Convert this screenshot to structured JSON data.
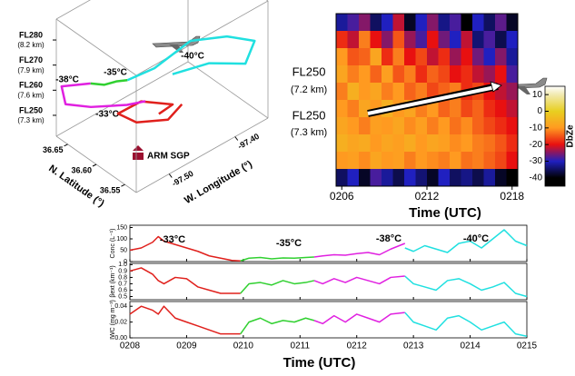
{
  "chart_data": [
    {
      "type": "trajectory3d",
      "xlabel": "W. Longitude (°)",
      "ylabel": "N. Latitude (°)",
      "xlim": [
        -97.55,
        -97.35
      ],
      "ylim": [
        36.53,
        36.67
      ],
      "zlim": [
        7.05,
        8.45
      ],
      "xticks": [
        {
          "value": -97.5,
          "label": "-97.50"
        },
        {
          "value": -97.4,
          "label": "-97.40"
        }
      ],
      "yticks": [
        36.65,
        {
          "value": 36.6,
          "label": "36.60"
        },
        36.55
      ],
      "zticks": [
        {
          "value": 8.2,
          "label": "FL280",
          "sublabel": "(8.2 km)"
        },
        {
          "value": 7.9,
          "label": "FL270",
          "sublabel": "(7.9 km)"
        },
        {
          "value": 7.6,
          "label": "FL260",
          "sublabel": "(7.6 km)"
        },
        {
          "value": 7.3,
          "label": "FL250",
          "sublabel": "(7.3 km)"
        }
      ],
      "annotations": [
        "ARM SGP"
      ],
      "series": [
        {
          "name": "-33°C",
          "color": "#e0201c",
          "x": [
            -97.42,
            -97.441,
            -97.489,
            -97.517,
            -97.482,
            -97.434,
            -97.455
          ],
          "y": [
            36.6,
            36.6,
            36.6,
            36.6,
            36.6,
            36.6,
            36.6
          ],
          "z": [
            7.19,
            7.1,
            7.28,
            7.51,
            7.5,
            7.25,
            7.23
          ]
        },
        {
          "name": "-38°C",
          "color": "#e020e0",
          "x": [
            -97.451,
            -97.479,
            -97.534,
            -97.536,
            -97.542,
            -97.498
          ],
          "y": [
            36.628,
            36.628,
            36.628,
            36.67,
            36.67,
            36.67
          ],
          "z": [
            7.23,
            7.31,
            7.53,
            7.37,
            7.61,
            7.45
          ]
        },
        {
          "name": "-35°C",
          "color": "#30d030",
          "x": [
            -97.498,
            -97.477,
            -97.459,
            -97.442
          ],
          "y": [
            36.67,
            36.67,
            36.67,
            36.67
          ],
          "z": [
            7.45,
            7.34,
            7.3,
            7.24
          ]
        },
        {
          "name": "-40°C",
          "color": "#20e0e0",
          "x": [
            -97.442,
            -97.401,
            -97.407,
            -97.388,
            -97.346,
            -97.36,
            -97.415,
            -97.41
          ],
          "y": [
            36.67,
            36.67,
            36.6,
            36.558,
            36.558,
            36.558,
            36.558,
            36.628
          ],
          "z": [
            7.24,
            7.2,
            7.89,
            8.06,
            7.82,
            7.61,
            7.86,
            7.37
          ]
        }
      ]
    },
    {
      "type": "heatmap",
      "xlabel": "Time (UTC)",
      "xlim": [
        5.6,
        18.4
      ],
      "xticks": [
        {
          "value": 6,
          "label": "0206"
        },
        {
          "value": 12,
          "label": "0212"
        },
        {
          "value": 18,
          "label": "0218"
        }
      ],
      "annotations": [
        "FL250",
        "(7.2 km)",
        "FL250",
        "(7.3 km)"
      ],
      "clabel": "DbZe",
      "clim": [
        -45,
        15
      ],
      "cticks": [
        10,
        0,
        -10,
        -20,
        -30,
        -40
      ],
      "colorscale": [
        {
          "value": 15,
          "color": "#ffffff"
        },
        {
          "value": 10,
          "color": "#f2eab0"
        },
        {
          "value": 0,
          "color": "#e8cf20"
        },
        {
          "value": -10,
          "color": "#ff9a20"
        },
        {
          "value": -20,
          "color": "#e81010"
        },
        {
          "value": -30,
          "color": "#2020c0"
        },
        {
          "value": -40,
          "color": "#000000"
        },
        {
          "value": -45,
          "color": "#000000"
        }
      ],
      "x": [
        6.0,
        6.8,
        7.6,
        8.4,
        9.2,
        10.0,
        10.8,
        11.6,
        12.4,
        13.2,
        14.0,
        14.8,
        15.6,
        16.4,
        17.2,
        18.0
      ],
      "z": [
        [
          -32,
          -28,
          -25,
          -35,
          -30,
          -22,
          -38,
          -30,
          -25,
          -33,
          -28,
          -40,
          -30,
          -35,
          -27,
          -38
        ],
        [
          -18,
          -22,
          -12,
          -20,
          -25,
          -15,
          -24,
          -28,
          -20,
          -26,
          -30,
          -22,
          -34,
          -28,
          -36,
          -30
        ],
        [
          -10,
          -15,
          -14,
          -8,
          -18,
          -12,
          -20,
          -16,
          -22,
          -18,
          -24,
          -20,
          -26,
          -30,
          -25,
          -32
        ],
        [
          -8,
          -12,
          -10,
          -14,
          -9,
          -15,
          -12,
          -18,
          -14,
          -16,
          -20,
          -18,
          -22,
          -24,
          -20,
          -28
        ],
        [
          -12,
          -6,
          -10,
          -8,
          -12,
          -10,
          -14,
          -12,
          -16,
          -14,
          -12,
          -18,
          -16,
          -20,
          -22,
          -24
        ],
        [
          -10,
          -12,
          -8,
          -10,
          -6,
          -10,
          -8,
          -12,
          -10,
          -14,
          -12,
          -16,
          -14,
          -18,
          -20,
          -22
        ],
        [
          -8,
          -10,
          -12,
          -9,
          -10,
          -8,
          -11,
          -9,
          -12,
          -10,
          -13,
          -11,
          -14,
          -16,
          -18,
          -20
        ],
        [
          -6,
          -8,
          -7,
          -10,
          -8,
          -9,
          -7,
          -10,
          -8,
          -9,
          -11,
          -10,
          -12,
          -13,
          -15,
          -18
        ],
        [
          -10,
          -9,
          -11,
          -8,
          -10,
          -9,
          -12,
          -10,
          -11,
          -12,
          -10,
          -13,
          -12,
          -14,
          -16,
          -20
        ],
        [
          -35,
          -30,
          -38,
          -28,
          -32,
          -36,
          -30,
          -34,
          -38,
          -30,
          -35,
          -33,
          -36,
          -32,
          -38,
          -40
        ]
      ]
    },
    {
      "type": "multi_line",
      "xlabel": "Time (UTC)",
      "xlim": [
        8,
        15
      ],
      "xticks": [
        {
          "value": 8,
          "label": "0208"
        },
        {
          "value": 9,
          "label": "0209"
        },
        {
          "value": 10,
          "label": "0210"
        },
        {
          "value": 11,
          "label": "0211"
        },
        {
          "value": 12,
          "label": "0212"
        },
        {
          "value": 13,
          "label": "0213"
        },
        {
          "value": 14,
          "label": "0214"
        },
        {
          "value": 15,
          "label": "0215"
        }
      ],
      "panels": [
        {
          "ylabel": "Conc (L⁻¹)",
          "ylim": [
            0,
            160
          ],
          "yticks": [
            0,
            50,
            100,
            150
          ],
          "series": [
            {
              "name": "-33°C",
              "color": "#e0201c",
              "x": [
                8.0,
                8.2,
                8.4,
                8.5,
                8.6,
                8.8,
                9.0,
                9.2,
                9.4,
                9.6,
                9.8,
                9.95
              ],
              "values": [
                50,
                60,
                85,
                110,
                90,
                75,
                60,
                45,
                25,
                15,
                5,
                3
              ]
            },
            {
              "name": "-35°C",
              "color": "#30d030",
              "x": [
                9.95,
                10.1,
                10.3,
                10.5,
                10.7,
                10.9,
                11.1,
                11.25
              ],
              "values": [
                3,
                15,
                18,
                12,
                16,
                15,
                18,
                20
              ]
            },
            {
              "name": "-38°C",
              "color": "#e020e0",
              "x": [
                11.25,
                11.4,
                11.6,
                11.8,
                12.0,
                12.2,
                12.4,
                12.6,
                12.85
              ],
              "values": [
                20,
                25,
                30,
                28,
                35,
                40,
                30,
                55,
                80
              ]
            },
            {
              "name": "-40°C",
              "color": "#20e0e0",
              "x": [
                12.85,
                13.0,
                13.2,
                13.4,
                13.6,
                13.8,
                14.0,
                14.2,
                14.4,
                14.6,
                14.8,
                15.0
              ],
              "values": [
                60,
                45,
                70,
                55,
                40,
                80,
                90,
                60,
                100,
                140,
                90,
                70
              ]
            }
          ]
        },
        {
          "ylabel": "βext (km⁻¹)",
          "ylim": [
            0.45,
            1.02
          ],
          "yticks": [
            0.5,
            0.6,
            0.7,
            0.8,
            0.9,
            {
              "value": 1,
              "label": "1.0"
            }
          ],
          "series": [
            {
              "color": "#e0201c",
              "x": [
                8.0,
                8.2,
                8.4,
                8.5,
                8.6,
                8.8,
                9.0,
                9.2,
                9.4,
                9.6,
                9.8,
                9.95
              ],
              "values": [
                0.9,
                0.95,
                0.85,
                0.75,
                0.7,
                0.8,
                0.78,
                0.65,
                0.6,
                0.55,
                0.55,
                0.55
              ]
            },
            {
              "color": "#30d030",
              "x": [
                9.95,
                10.1,
                10.3,
                10.5,
                10.7,
                10.9,
                11.1,
                11.25
              ],
              "values": [
                0.55,
                0.7,
                0.72,
                0.68,
                0.75,
                0.7,
                0.72,
                0.75
              ]
            },
            {
              "color": "#e020e0",
              "x": [
                11.25,
                11.4,
                11.6,
                11.8,
                12.0,
                12.2,
                12.4,
                12.6,
                12.85
              ],
              "values": [
                0.75,
                0.7,
                0.78,
                0.72,
                0.8,
                0.75,
                0.7,
                0.8,
                0.82
              ]
            },
            {
              "color": "#20e0e0",
              "x": [
                12.85,
                13.0,
                13.2,
                13.4,
                13.6,
                13.8,
                14.0,
                14.2,
                14.4,
                14.6,
                14.8,
                15.0
              ],
              "values": [
                0.82,
                0.7,
                0.65,
                0.6,
                0.75,
                0.78,
                0.7,
                0.6,
                0.65,
                0.72,
                0.55,
                0.5
              ]
            }
          ]
        },
        {
          "ylabel": "IWC (mg m⁻³)",
          "ylim": [
            0,
            0.046
          ],
          "yticks": [
            {
              "value": 0,
              "label": "0.00"
            },
            0.02,
            0.04
          ],
          "series": [
            {
              "color": "#e0201c",
              "x": [
                8.0,
                8.2,
                8.4,
                8.5,
                8.6,
                8.8,
                9.0,
                9.2,
                9.4,
                9.6,
                9.8,
                9.95
              ],
              "values": [
                0.03,
                0.04,
                0.035,
                0.03,
                0.04,
                0.025,
                0.02,
                0.015,
                0.01,
                0.005,
                0.005,
                0.005
              ]
            },
            {
              "color": "#30d030",
              "x": [
                9.95,
                10.1,
                10.3,
                10.5,
                10.7,
                10.9,
                11.1,
                11.25
              ],
              "values": [
                0.005,
                0.02,
                0.025,
                0.018,
                0.022,
                0.02,
                0.025,
                0.022
              ]
            },
            {
              "color": "#e020e0",
              "x": [
                11.25,
                11.4,
                11.6,
                11.8,
                12.0,
                12.2,
                12.4,
                12.6,
                12.85
              ],
              "values": [
                0.022,
                0.018,
                0.028,
                0.02,
                0.03,
                0.025,
                0.02,
                0.03,
                0.032
              ]
            },
            {
              "color": "#20e0e0",
              "x": [
                12.85,
                13.0,
                13.2,
                13.4,
                13.6,
                13.8,
                14.0,
                14.2,
                14.4,
                14.6,
                14.8,
                15.0
              ],
              "values": [
                0.032,
                0.02,
                0.015,
                0.01,
                0.025,
                0.028,
                0.02,
                0.01,
                0.015,
                0.02,
                0.005,
                0.002
              ]
            }
          ]
        }
      ]
    }
  ]
}
